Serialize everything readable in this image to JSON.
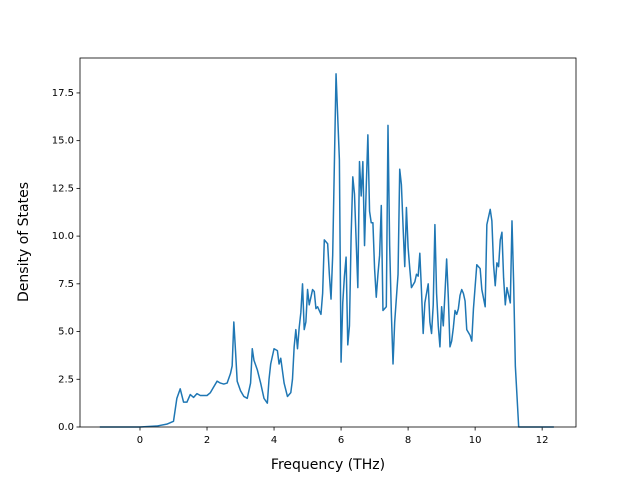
{
  "chart_data": {
    "type": "line",
    "x_label": "Frequency (THz)",
    "y_label": "Density of States",
    "x": [
      -1.2,
      0,
      0.5,
      0.8,
      1.0,
      1.1,
      1.2,
      1.3,
      1.4,
      1.5,
      1.6,
      1.7,
      1.8,
      2.0,
      2.1,
      2.2,
      2.3,
      2.4,
      2.5,
      2.6,
      2.7,
      2.75,
      2.8,
      2.85,
      2.9,
      3.0,
      3.1,
      3.2,
      3.3,
      3.35,
      3.4,
      3.5,
      3.6,
      3.7,
      3.8,
      3.85,
      3.9,
      4.0,
      4.1,
      4.15,
      4.2,
      4.3,
      4.4,
      4.5,
      4.55,
      4.6,
      4.65,
      4.7,
      4.75,
      4.8,
      4.85,
      4.9,
      4.95,
      5.0,
      5.05,
      5.1,
      5.15,
      5.2,
      5.25,
      5.3,
      5.4,
      5.45,
      5.5,
      5.6,
      5.65,
      5.7,
      5.75,
      5.85,
      5.95,
      6.0,
      6.05,
      6.1,
      6.15,
      6.2,
      6.25,
      6.3,
      6.35,
      6.4,
      6.5,
      6.55,
      6.6,
      6.65,
      6.7,
      6.75,
      6.8,
      6.85,
      6.9,
      6.95,
      7.0,
      7.05,
      7.1,
      7.15,
      7.2,
      7.25,
      7.35,
      7.4,
      7.45,
      7.5,
      7.55,
      7.6,
      7.7,
      7.75,
      7.8,
      7.85,
      7.9,
      7.95,
      8.0,
      8.05,
      8.1,
      8.2,
      8.25,
      8.3,
      8.35,
      8.4,
      8.45,
      8.5,
      8.6,
      8.65,
      8.7,
      8.75,
      8.8,
      8.85,
      8.9,
      8.95,
      9.0,
      9.05,
      9.1,
      9.15,
      9.2,
      9.25,
      9.3,
      9.35,
      9.4,
      9.45,
      9.5,
      9.55,
      9.6,
      9.65,
      9.7,
      9.75,
      9.85,
      9.9,
      9.95,
      10.05,
      10.15,
      10.2,
      10.3,
      10.35,
      10.45,
      10.5,
      10.55,
      10.6,
      10.65,
      10.7,
      10.75,
      10.8,
      10.85,
      10.9,
      10.95,
      11.0,
      11.05,
      11.1,
      11.15,
      11.2,
      11.3,
      12.35
    ],
    "series": [
      {
        "color": "#1f77b4",
        "values": [
          0,
          0,
          0.05,
          0.15,
          0.3,
          1.5,
          2.0,
          1.3,
          1.3,
          1.7,
          1.55,
          1.75,
          1.65,
          1.65,
          1.8,
          2.1,
          2.4,
          2.3,
          2.25,
          2.3,
          2.8,
          3.2,
          5.5,
          4.0,
          2.4,
          1.9,
          1.6,
          1.5,
          2.3,
          4.1,
          3.5,
          3.0,
          2.3,
          1.5,
          1.25,
          2.5,
          3.3,
          4.1,
          4.0,
          3.3,
          3.6,
          2.3,
          1.6,
          1.8,
          2.5,
          4.2,
          5.1,
          4.1,
          5.2,
          6.0,
          7.5,
          5.1,
          5.5,
          7.2,
          6.4,
          6.8,
          7.2,
          7.1,
          6.2,
          6.3,
          5.9,
          7.0,
          9.8,
          9.6,
          8.0,
          6.7,
          9.0,
          18.5,
          14.0,
          3.4,
          6.5,
          7.9,
          8.9,
          4.3,
          5.3,
          10.0,
          13.1,
          12.2,
          7.3,
          13.9,
          12.1,
          13.9,
          9.5,
          12.5,
          15.3,
          11.3,
          10.7,
          10.7,
          8.3,
          6.8,
          8.0,
          9.0,
          11.6,
          6.1,
          6.3,
          15.8,
          9.5,
          6.0,
          3.3,
          5.5,
          8.0,
          13.5,
          12.7,
          10.5,
          8.4,
          11.5,
          9.4,
          8.3,
          7.3,
          7.6,
          8.0,
          7.9,
          9.1,
          7.1,
          4.9,
          6.5,
          7.5,
          5.5,
          4.9,
          6.4,
          10.6,
          7.0,
          5.3,
          4.2,
          6.3,
          5.3,
          7.0,
          8.8,
          6.8,
          4.2,
          4.5,
          5.2,
          6.1,
          5.9,
          6.2,
          6.9,
          7.2,
          7.0,
          6.6,
          5.1,
          4.8,
          4.5,
          6.2,
          8.5,
          8.3,
          7.2,
          6.3,
          10.6,
          11.4,
          10.8,
          8.5,
          7.4,
          8.6,
          8.4,
          9.8,
          10.2,
          7.8,
          6.4,
          7.3,
          6.9,
          6.5,
          10.8,
          7.5,
          3.2,
          0,
          0
        ]
      }
    ],
    "xlim": [
      -1.79,
      13.01
    ],
    "ylim": [
      0,
      19.33
    ],
    "xticks": [
      0,
      2,
      4,
      6,
      8,
      10,
      12
    ],
    "yticks": [
      {
        "value": 0,
        "label": "0.0"
      },
      2.5,
      {
        "value": 5,
        "label": "5.0"
      },
      7.5,
      {
        "value": 10,
        "label": "10.0"
      },
      12.5,
      {
        "value": 15,
        "label": "15.0"
      },
      17.5
    ]
  }
}
